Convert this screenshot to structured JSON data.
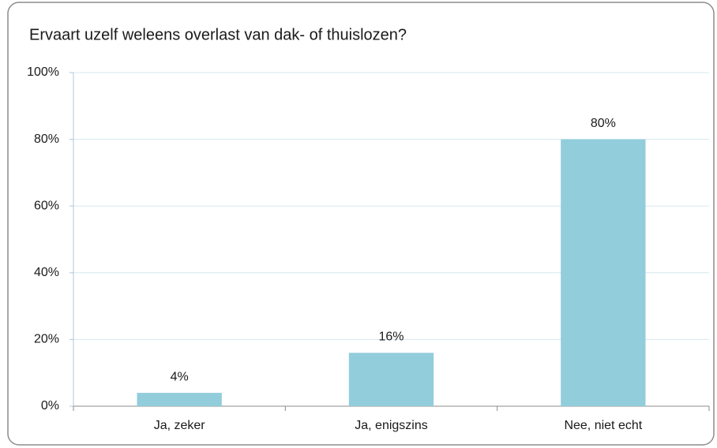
{
  "chart_data": {
    "type": "bar",
    "title": "Ervaart uzelf weleens overlast van dak- of thuislozen?",
    "categories": [
      "Ja, zeker",
      "Ja, enigszins",
      "Nee, niet echt"
    ],
    "values": [
      4,
      16,
      80
    ],
    "value_labels": [
      "4%",
      "16%",
      "80%"
    ],
    "color": "#92cddc",
    "ylim": [
      0,
      100
    ],
    "yticks": [
      {
        "value": 0,
        "label": "0%"
      },
      {
        "value": 20,
        "label": "20%"
      },
      {
        "value": 40,
        "label": "40%"
      },
      {
        "value": 60,
        "label": "60%"
      },
      {
        "value": 80,
        "label": "80%"
      },
      {
        "value": 100,
        "label": "100%"
      }
    ],
    "grid": true
  }
}
